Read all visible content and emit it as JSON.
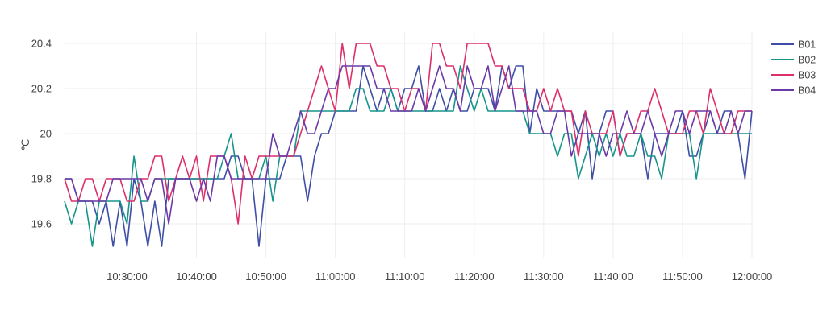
{
  "chart_data": {
    "type": "line",
    "title": "",
    "xlabel": "",
    "ylabel": "℃",
    "grid": true,
    "legend_position": "right",
    "x_start": "10:21:00",
    "x_step_minutes": 1,
    "xlim": [
      "10:21:00",
      "12:00:00"
    ],
    "ylim": [
      19.45,
      20.45
    ],
    "x_ticks": [
      "10:30:00",
      "10:40:00",
      "10:50:00",
      "11:00:00",
      "11:10:00",
      "11:20:00",
      "11:30:00",
      "11:40:00",
      "11:50:00",
      "12:00:00"
    ],
    "y_ticks": [
      19.6,
      19.8,
      20,
      20.2,
      20.4
    ],
    "y_tick_labels": [
      "19.6",
      "19.8",
      "20",
      "20.2",
      "20.4"
    ],
    "series": [
      {
        "name": "B01",
        "color": "#3f4fa6",
        "values": [
          19.8,
          19.8,
          19.7,
          19.7,
          19.7,
          19.6,
          19.7,
          19.5,
          19.7,
          19.5,
          19.8,
          19.7,
          19.5,
          19.7,
          19.5,
          19.8,
          19.8,
          19.8,
          19.8,
          19.8,
          19.8,
          19.8,
          19.8,
          19.8,
          19.9,
          19.9,
          19.8,
          19.8,
          19.5,
          19.8,
          19.8,
          19.8,
          19.9,
          19.9,
          19.9,
          19.7,
          19.9,
          20.0,
          20.0,
          20.1,
          20.1,
          20.1,
          20.1,
          20.3,
          20.2,
          20.1,
          20.2,
          20.2,
          20.1,
          20.2,
          20.2,
          20.3,
          20.1,
          20.1,
          20.2,
          20.1,
          20.2,
          20.1,
          20.1,
          20.2,
          20.2,
          20.2,
          20.1,
          20.3,
          20.2,
          20.3,
          20.3,
          20.0,
          20.2,
          20.1,
          20.1,
          20.1,
          20.1,
          20.1,
          20.0,
          20.1,
          19.8,
          20.0,
          20.1,
          20.1,
          19.9,
          20.0,
          20.0,
          20.0,
          19.8,
          20.0,
          20.0,
          20.0,
          20.0,
          20.1,
          19.9,
          19.9,
          20.0,
          20.1,
          20.0,
          20.1,
          20.1,
          20.0,
          19.8,
          20.1
        ]
      },
      {
        "name": "B02",
        "color": "#17958a",
        "values": [
          19.7,
          19.6,
          19.7,
          19.7,
          19.5,
          19.7,
          19.7,
          19.7,
          19.7,
          19.6,
          19.9,
          19.7,
          19.7,
          19.8,
          19.8,
          19.8,
          19.8,
          19.8,
          19.8,
          19.8,
          19.8,
          19.8,
          19.8,
          19.9,
          20.0,
          19.8,
          19.8,
          19.8,
          19.8,
          19.9,
          19.7,
          19.9,
          19.9,
          19.9,
          20.1,
          20.1,
          20.1,
          20.1,
          20.1,
          20.1,
          20.1,
          20.1,
          20.2,
          20.2,
          20.1,
          20.1,
          20.1,
          20.2,
          20.1,
          20.1,
          20.1,
          20.1,
          20.1,
          20.1,
          20.1,
          20.1,
          20.1,
          20.3,
          20.2,
          20.1,
          20.2,
          20.1,
          20.1,
          20.1,
          20.1,
          20.1,
          20.1,
          20.0,
          20.0,
          20.0,
          20.0,
          19.9,
          20.0,
          20.0,
          19.8,
          19.9,
          20.0,
          19.9,
          20.0,
          19.9,
          20.0,
          19.9,
          19.9,
          20.0,
          19.9,
          19.9,
          19.8,
          20.0,
          20.0,
          20.0,
          20.0,
          19.8,
          20.0,
          20.0,
          20.0,
          20.0,
          20.0,
          20.0,
          20.0,
          20.0
        ]
      },
      {
        "name": "B03",
        "color": "#dc2f6b",
        "values": [
          19.8,
          19.7,
          19.7,
          19.8,
          19.8,
          19.7,
          19.8,
          19.8,
          19.8,
          19.7,
          19.7,
          19.8,
          19.8,
          19.9,
          19.9,
          19.7,
          19.8,
          19.9,
          19.8,
          19.9,
          19.7,
          19.9,
          19.9,
          19.9,
          19.8,
          19.6,
          19.9,
          19.8,
          19.9,
          19.9,
          19.9,
          19.9,
          19.9,
          19.9,
          20.0,
          20.1,
          20.2,
          20.3,
          20.2,
          20.1,
          20.4,
          20.2,
          20.4,
          20.4,
          20.4,
          20.3,
          20.3,
          20.2,
          20.2,
          20.1,
          20.2,
          20.2,
          20.1,
          20.4,
          20.4,
          20.3,
          20.3,
          20.2,
          20.4,
          20.4,
          20.4,
          20.4,
          20.3,
          20.3,
          20.2,
          20.2,
          20.2,
          20.1,
          20.1,
          20.2,
          20.1,
          20.2,
          20.1,
          20.1,
          19.9,
          20.1,
          20.0,
          20.0,
          20.0,
          20.1,
          19.9,
          20.0,
          20.0,
          20.1,
          20.1,
          20.2,
          20.1,
          20.0,
          20.0,
          20.0,
          20.1,
          20.1,
          20.0,
          20.2,
          20.1,
          20.0,
          20.0,
          20.1,
          20.1,
          20.1
        ]
      },
      {
        "name": "B04",
        "color": "#6a3aa8",
        "values": [
          19.8,
          19.8,
          19.7,
          19.7,
          19.7,
          19.7,
          19.7,
          19.8,
          19.8,
          19.8,
          19.8,
          19.8,
          19.7,
          19.8,
          19.8,
          19.6,
          19.8,
          19.8,
          19.8,
          19.7,
          19.8,
          19.7,
          19.9,
          19.9,
          19.8,
          19.8,
          19.8,
          19.8,
          19.8,
          19.8,
          20.0,
          19.9,
          19.9,
          20.0,
          20.1,
          20.0,
          20.0,
          20.1,
          20.2,
          20.2,
          20.3,
          20.3,
          20.3,
          20.3,
          20.3,
          20.2,
          20.2,
          20.1,
          20.1,
          20.1,
          20.1,
          20.2,
          20.1,
          20.2,
          20.3,
          20.2,
          20.2,
          20.1,
          20.3,
          20.2,
          20.2,
          20.3,
          20.1,
          20.2,
          20.3,
          20.1,
          20.1,
          20.1,
          20.1,
          20.0,
          20.0,
          20.1,
          20.1,
          19.9,
          20.0,
          20.0,
          20.0,
          20.0,
          19.9,
          20.0,
          20.0,
          20.1,
          20.0,
          20.0,
          20.1,
          20.0,
          19.9,
          20.0,
          20.1,
          20.1,
          20.0,
          20.1,
          20.1,
          20.1,
          20.0,
          20.0,
          20.1,
          20.0,
          20.1,
          20.1
        ]
      }
    ]
  }
}
